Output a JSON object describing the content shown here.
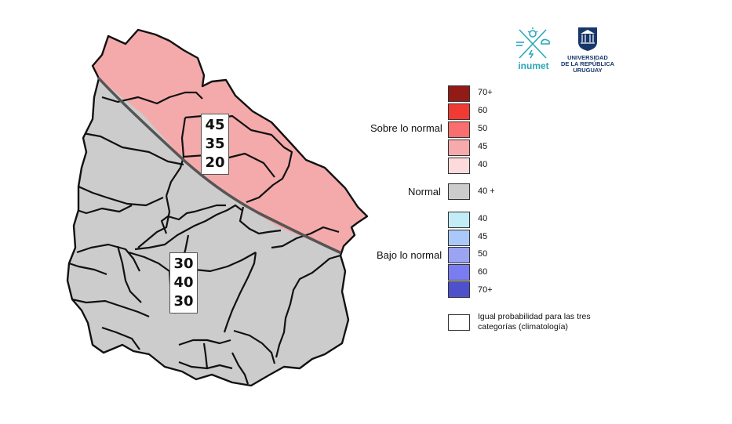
{
  "map": {
    "north_box": [
      "45",
      "35",
      "20"
    ],
    "south_box": [
      "30",
      "40",
      "30"
    ],
    "colors": {
      "above_45": "#f4aaab",
      "normal": "#cccccc",
      "border": "#111111",
      "divider": "#555555"
    }
  },
  "legend": {
    "above": {
      "title": "Sobre lo normal",
      "items": [
        {
          "label": "70+",
          "color": "#921b17"
        },
        {
          "label": "60",
          "color": "#f23a34"
        },
        {
          "label": "50",
          "color": "#f96e6e"
        },
        {
          "label": "45",
          "color": "#f7aaab"
        },
        {
          "label": "40",
          "color": "#fddadb"
        }
      ]
    },
    "normal": {
      "title": "Normal",
      "label": "40 +",
      "color": "#cccccc"
    },
    "below": {
      "title": "Bajo lo normal",
      "items": [
        {
          "label": "40",
          "color": "#c2ecf6"
        },
        {
          "label": "45",
          "color": "#aac9f8"
        },
        {
          "label": "50",
          "color": "#9aa4f3"
        },
        {
          "label": "60",
          "color": "#7a7cf2"
        },
        {
          "label": "70+",
          "color": "#4e51cb"
        }
      ]
    },
    "climatology": {
      "text": "Igual probabilidad para las tres categorías (climatología)",
      "color": "#ffffff"
    }
  },
  "logos": {
    "inumet": {
      "name": "inumet",
      "icon": "weather-cross-icon"
    },
    "udelar": {
      "line1": "UNIVERSIDAD",
      "line2": "DE LA REPÚBLICA",
      "line3": "URUGUAY",
      "icon": "university-seal-icon"
    }
  }
}
